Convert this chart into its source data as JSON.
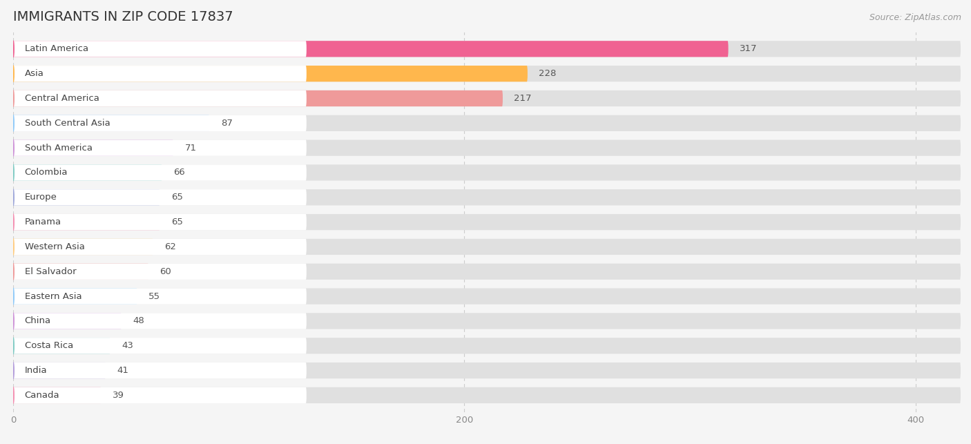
{
  "title": "IMMIGRANTS IN ZIP CODE 17837",
  "source": "Source: ZipAtlas.com",
  "categories": [
    "Latin America",
    "Asia",
    "Central America",
    "South Central Asia",
    "South America",
    "Colombia",
    "Europe",
    "Panama",
    "Western Asia",
    "El Salvador",
    "Eastern Asia",
    "China",
    "Costa Rica",
    "India",
    "Canada"
  ],
  "values": [
    317,
    228,
    217,
    87,
    71,
    66,
    65,
    65,
    62,
    60,
    55,
    48,
    43,
    41,
    39
  ],
  "colors": [
    "#F06292",
    "#FFB74D",
    "#EF9A9A",
    "#90CAF9",
    "#CE93D8",
    "#80CBC4",
    "#9FA8DA",
    "#F48FB1",
    "#FFCC80",
    "#EF9A9A",
    "#90CAF9",
    "#CE93D8",
    "#80CBC4",
    "#B39DDB",
    "#F48FB1"
  ],
  "xlim_max": 420,
  "background_color": "#f5f5f5",
  "bar_bg_color": "#e0e0e0",
  "white_label_color": "#ffffff",
  "title_fontsize": 14,
  "label_fontsize": 9.5,
  "value_fontsize": 9.5,
  "source_fontsize": 9
}
